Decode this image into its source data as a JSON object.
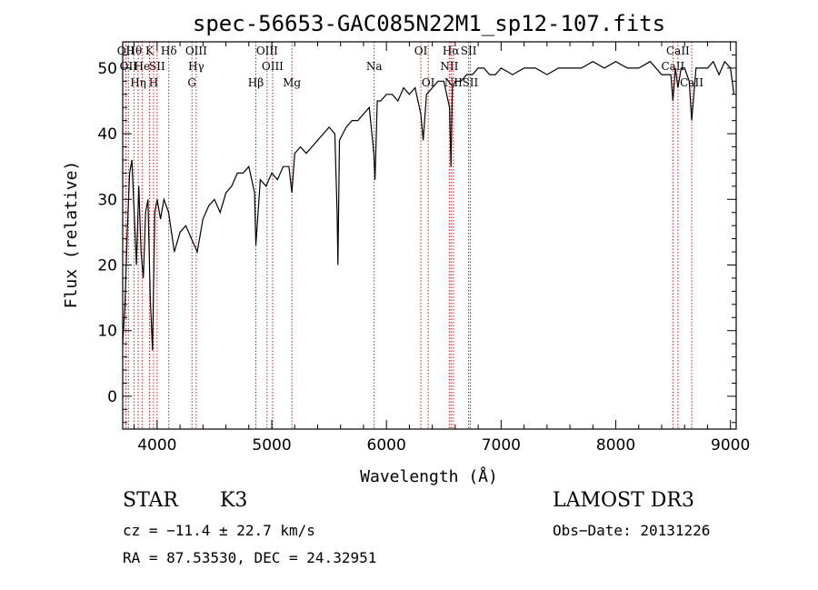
{
  "chart_data": {
    "type": "line",
    "title": "spec-56653-GAC085N22M1_sp12-107.fits",
    "xlabel": "Wavelength (Å)",
    "ylabel": "Flux (relative)",
    "xlim": [
      3700,
      9050
    ],
    "ylim": [
      -5,
      54
    ],
    "xticks": [
      4000,
      5000,
      6000,
      7000,
      8000,
      9000
    ],
    "yticks": [
      0,
      10,
      20,
      30,
      40,
      50
    ],
    "series": [
      {
        "name": "flux",
        "x": [
          3700,
          3720,
          3740,
          3760,
          3780,
          3800,
          3820,
          3840,
          3860,
          3880,
          3900,
          3920,
          3940,
          3960,
          3980,
          4000,
          4030,
          4060,
          4100,
          4150,
          4200,
          4250,
          4300,
          4350,
          4400,
          4450,
          4500,
          4550,
          4600,
          4650,
          4700,
          4750,
          4800,
          4850,
          4861,
          4900,
          4950,
          5000,
          5050,
          5100,
          5150,
          5175,
          5200,
          5250,
          5300,
          5350,
          5400,
          5450,
          5500,
          5550,
          5570,
          5577,
          5590,
          5620,
          5650,
          5700,
          5750,
          5800,
          5850,
          5890,
          5900,
          5920,
          5950,
          6000,
          6050,
          6100,
          6150,
          6200,
          6250,
          6300,
          6320,
          6350,
          6400,
          6450,
          6500,
          6550,
          6563,
          6575,
          6600,
          6650,
          6700,
          6750,
          6800,
          6850,
          6900,
          6950,
          7000,
          7100,
          7200,
          7300,
          7400,
          7500,
          7600,
          7700,
          7800,
          7900,
          8000,
          8100,
          8200,
          8300,
          8400,
          8480,
          8498,
          8520,
          8542,
          8570,
          8600,
          8640,
          8662,
          8700,
          8750,
          8800,
          8850,
          8900,
          8950,
          9000,
          9030
        ],
        "values": [
          8,
          14,
          25,
          34,
          36,
          28,
          20,
          32,
          22,
          18,
          28,
          30,
          15,
          7,
          28,
          30,
          27,
          30,
          28,
          22,
          25,
          26,
          24,
          22,
          27,
          29,
          30,
          28,
          31,
          32,
          34,
          34,
          35,
          31,
          23,
          33,
          32,
          34,
          33,
          35,
          35,
          31,
          37,
          38,
          37,
          38,
          39,
          40,
          41,
          40,
          28,
          20,
          39,
          40,
          41,
          42,
          42,
          43,
          44,
          37,
          33,
          45,
          45,
          46,
          46,
          45,
          47,
          46,
          47,
          43,
          39,
          46,
          47,
          48,
          48,
          44,
          35,
          47,
          48,
          48,
          49,
          49,
          50,
          50,
          49,
          49,
          50,
          49,
          50,
          50,
          49,
          50,
          50,
          50,
          51,
          50,
          51,
          50,
          50,
          51,
          49,
          49,
          45,
          50,
          47,
          50,
          50,
          48,
          42,
          50,
          50,
          50,
          51,
          49,
          51,
          50,
          46
        ]
      }
    ],
    "lines": [
      {
        "w": 3727,
        "top": "OII",
        "mid": "",
        "bot": ""
      },
      {
        "w": 3750,
        "top": "",
        "mid": "OII",
        "bot": ""
      },
      {
        "w": 3798,
        "top": "Hθ",
        "mid": "",
        "bot": ""
      },
      {
        "w": 3835,
        "top": "",
        "mid": "",
        "bot": "Hη"
      },
      {
        "w": 3869,
        "top": "",
        "mid": "He",
        "bot": ""
      },
      {
        "w": 3934,
        "top": "K",
        "mid": "",
        "bot": ""
      },
      {
        "w": 3969,
        "top": "",
        "mid": "",
        "bot": "H"
      },
      {
        "w": 4000,
        "top": "",
        "mid": "SII",
        "bot": ""
      },
      {
        "w": 4102,
        "top": "Hδ",
        "mid": "",
        "bot": ""
      },
      {
        "w": 4304,
        "top": "",
        "mid": "",
        "bot": "G"
      },
      {
        "w": 4341,
        "top": "OIII",
        "mid": "Hγ",
        "bot": ""
      },
      {
        "w": 4861,
        "top": "",
        "mid": "",
        "bot": "Hβ"
      },
      {
        "w": 4959,
        "top": "OIII",
        "mid": "",
        "bot": ""
      },
      {
        "w": 5007,
        "top": "",
        "mid": "OIII",
        "bot": ""
      },
      {
        "w": 5175,
        "top": "",
        "mid": "",
        "bot": "Mg"
      },
      {
        "w": 5893,
        "top": "",
        "mid": "Na",
        "bot": ""
      },
      {
        "w": 6300,
        "top": "OI",
        "mid": "",
        "bot": ""
      },
      {
        "w": 6364,
        "top": "",
        "mid": "",
        "bot": "OI"
      },
      {
        "w": 6548,
        "top": "",
        "mid": "NII",
        "bot": ""
      },
      {
        "w": 6563,
        "top": "Hα",
        "mid": "",
        "bot": ""
      },
      {
        "w": 6584,
        "top": "",
        "mid": "",
        "bot": "NII"
      },
      {
        "w": 6717,
        "top": "SII",
        "mid": "",
        "bot": ""
      },
      {
        "w": 6731,
        "top": "",
        "mid": "",
        "bot": "SII"
      },
      {
        "w": 8498,
        "top": "",
        "mid": "CaII",
        "bot": ""
      },
      {
        "w": 8542,
        "top": "CaII",
        "mid": "",
        "bot": ""
      },
      {
        "w": 8662,
        "top": "",
        "mid": "",
        "bot": "CaII"
      }
    ]
  },
  "info": {
    "object_class": "STAR",
    "subclass": "K3",
    "survey": "LAMOST DR3",
    "cz": "cz = −11.4 ± 22.7 km/s",
    "obs_date": "Obs−Date: 20131226",
    "coords": "RA =  87.53530, DEC =  24.32951"
  },
  "colors": {
    "line_marker": "#cc0000",
    "spectrum": "#000000"
  }
}
